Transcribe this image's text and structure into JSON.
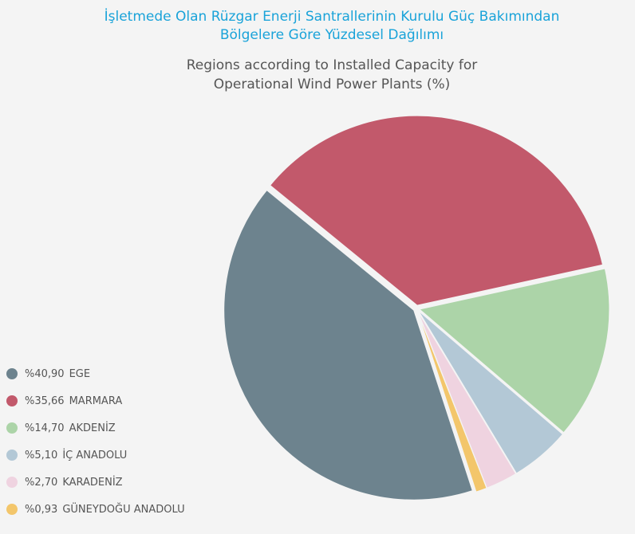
{
  "header": {
    "title_tr_line1": "İşletmede Olan Rüzgar Enerji Santrallerinin Kurulu Güç Bakımından",
    "title_tr_line2": "Bölgelere Göre Yüzdesel Dağılımı",
    "title_en_line1": "Regions according to Installed Capacity for",
    "title_en_line2": "Operational Wind Power Plants (%)"
  },
  "chart_data": {
    "type": "pie",
    "title": "İşletmede Olan Rüzgar Enerji Santrallerinin Kurulu Güç Bakımından Bölgelere Göre Yüzdesel Dağılımı",
    "subtitle": "Regions according to Installed Capacity for Operational Wind Power Plants (%)",
    "legend_position": "bottom-left",
    "categories": [
      "EGE",
      "MARMARA",
      "AKDENİZ",
      "İÇ ANADOLU",
      "KARADENİZ",
      "GÜNEYDOĞU ANADOLU"
    ],
    "values": [
      40.9,
      35.66,
      14.7,
      5.1,
      2.7,
      0.93
    ],
    "value_labels": [
      "%40,90",
      "%35,66",
      "%14,70",
      "%5,10",
      "%2,70",
      "%0,93"
    ],
    "colors": [
      "#6d838e",
      "#c2596b",
      "#acd4a8",
      "#b3c8d6",
      "#efd3e0",
      "#f3c66b"
    ]
  }
}
